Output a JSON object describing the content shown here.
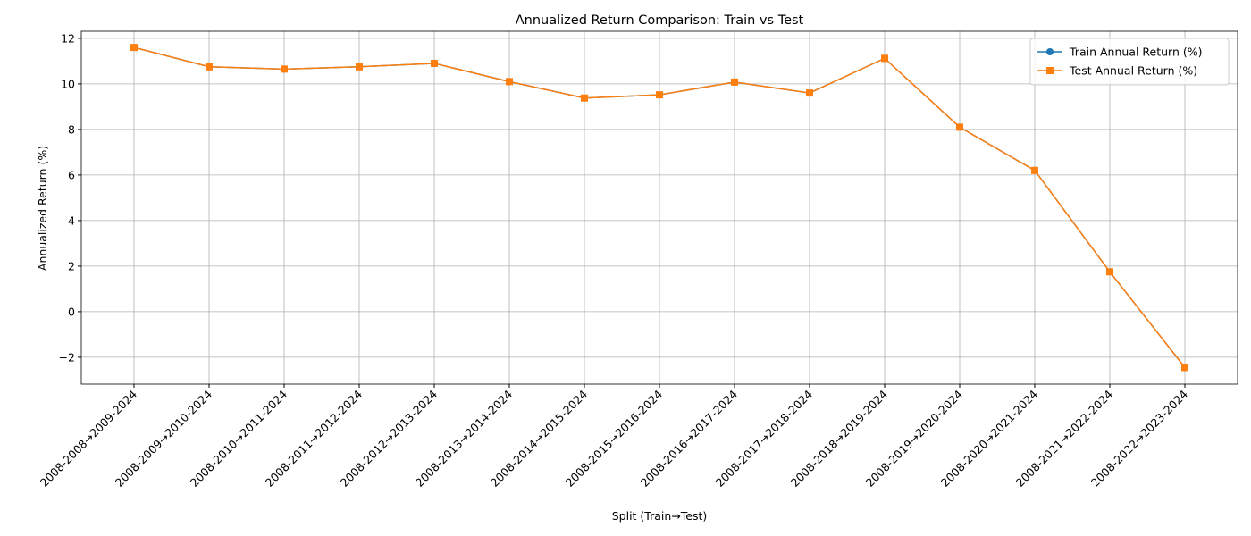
{
  "chart_data": {
    "type": "line",
    "title": "Annualized Return Comparison: Train vs Test",
    "xlabel": "Split (Train→Test)",
    "ylabel": "Annualized Return (%)",
    "categories": [
      "2008-2008→2009-2024",
      "2008-2009→2010-2024",
      "2008-2010→2011-2024",
      "2008-2011→2012-2024",
      "2008-2012→2013-2024",
      "2008-2013→2014-2024",
      "2008-2014→2015-2024",
      "2008-2015→2016-2024",
      "2008-2016→2017-2024",
      "2008-2017→2018-2024",
      "2008-2018→2019-2024",
      "2008-2019→2020-2024",
      "2008-2020→2021-2024",
      "2008-2021→2022-2024",
      "2008-2022→2023-2024"
    ],
    "series": [
      {
        "name": "Train Annual Return (%)",
        "color": "#1f77b4",
        "marker": "circle",
        "values": [
          11.6,
          10.75,
          10.65,
          10.75,
          10.9,
          10.1,
          9.38,
          9.52,
          10.08,
          9.6,
          11.12,
          8.1,
          6.2,
          1.75,
          -2.45
        ]
      },
      {
        "name": "Test Annual Return (%)",
        "color": "#ff7f0e",
        "marker": "square",
        "values": [
          11.6,
          10.75,
          10.65,
          10.75,
          10.9,
          10.1,
          9.38,
          9.52,
          10.08,
          9.6,
          11.12,
          8.1,
          6.2,
          1.75,
          -2.45
        ]
      }
    ],
    "ylim": [
      -3.18,
      12.31
    ],
    "yticks": [
      {
        "value": -2,
        "label": "−2"
      },
      0,
      2,
      4,
      6,
      8,
      10,
      12
    ],
    "grid": true,
    "legend": "upper right"
  }
}
